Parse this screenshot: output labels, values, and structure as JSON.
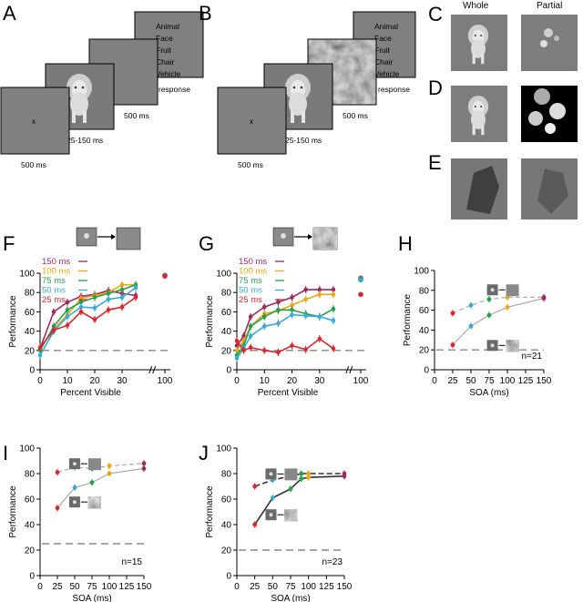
{
  "panel_labels": {
    "A": "A",
    "B": "B",
    "C": "C",
    "D": "D",
    "E": "E",
    "F": "F",
    "G": "G",
    "H": "H",
    "I": "I",
    "J": "J"
  },
  "colors": {
    "150": "#9c2a63",
    "100": "#e7a81b",
    "75": "#2a9d4a",
    "50": "#3aa9d6",
    "25": "#d8282f"
  },
  "protocol": {
    "fixation": "x",
    "choices": [
      "Animal",
      "Face",
      "Fruit",
      "Chair",
      "Vehicle"
    ],
    "response": "response",
    "t_fix": "500 ms",
    "t_stim": "25-150 ms",
    "t_mask": "500 ms"
  },
  "conditions": {
    "whole": "Whole",
    "partial": "Partial"
  },
  "legend_labels": [
    "150 ms",
    "100 ms",
    "75 ms",
    "50 ms",
    "25 ms"
  ],
  "chart_data": [
    {
      "id": "F",
      "type": "line",
      "xlabel": "Percent Visible",
      "ylabel": "Performance",
      "xlim": [
        0,
        40
      ],
      "ylim": [
        0,
        100
      ],
      "xticks": [
        0,
        10,
        20,
        30
      ],
      "extra_tick": "100",
      "yticks": [
        0,
        20,
        40,
        60,
        80,
        100
      ],
      "chance": 20,
      "x": [
        0,
        5,
        10,
        15,
        20,
        25,
        30,
        35
      ],
      "series": [
        {
          "name": "150 ms",
          "values": [
            22,
            60,
            70,
            76,
            78,
            82,
            79,
            77
          ],
          "full": 98
        },
        {
          "name": "100 ms",
          "values": [
            22,
            42,
            57,
            74,
            77,
            80,
            88,
            88
          ],
          "full": 98
        },
        {
          "name": "75 ms",
          "values": [
            20,
            45,
            62,
            70,
            75,
            79,
            83,
            88
          ],
          "full": 98
        },
        {
          "name": "50 ms",
          "values": [
            15,
            40,
            55,
            65,
            64,
            73,
            75,
            85
          ],
          "full": 98
        },
        {
          "name": "25 ms",
          "values": [
            23,
            41,
            46,
            60,
            52,
            62,
            65,
            75
          ],
          "full": 97
        }
      ]
    },
    {
      "id": "G",
      "type": "line",
      "xlabel": "Percent Visible",
      "ylabel": "Performance",
      "xlim": [
        0,
        40
      ],
      "ylim": [
        0,
        100
      ],
      "xticks": [
        0,
        10,
        20,
        30
      ],
      "extra_tick": "100",
      "yticks": [
        0,
        20,
        40,
        60,
        80,
        100
      ],
      "chance": 20,
      "x": [
        0,
        2.5,
        5,
        10,
        15,
        20,
        25,
        30,
        35
      ],
      "series": [
        {
          "name": "150 ms",
          "values": [
            25,
            35,
            55,
            65,
            70,
            75,
            83,
            83,
            83
          ],
          "full": 95
        },
        {
          "name": "100 ms",
          "values": [
            20,
            30,
            45,
            58,
            61,
            67,
            73,
            78,
            78
          ],
          "full": 94
        },
        {
          "name": "75 ms",
          "values": [
            15,
            25,
            45,
            55,
            62,
            62,
            58,
            55,
            63
          ],
          "full": 94
        },
        {
          "name": "50 ms",
          "values": [
            12,
            22,
            35,
            45,
            48,
            57,
            56,
            55,
            51
          ],
          "full": 93
        },
        {
          "name": "25 ms",
          "values": [
            30,
            20,
            23,
            20,
            18,
            25,
            21,
            32,
            22
          ],
          "full": 78
        }
      ]
    },
    {
      "id": "H",
      "type": "line",
      "xlabel": "SOA (ms)",
      "ylabel": "Performance",
      "xlim": [
        0,
        150
      ],
      "ylim": [
        0,
        100
      ],
      "xticks": [
        0,
        25,
        50,
        75,
        100,
        125,
        150
      ],
      "yticks": [
        0,
        20,
        40,
        60,
        80,
        100
      ],
      "chance": 20,
      "n": "n=21",
      "x": [
        25,
        50,
        75,
        100,
        150
      ],
      "series": [
        {
          "name": "Whole, no mask",
          "values": [
            57,
            65,
            71,
            73,
            73
          ]
        },
        {
          "name": "Whole, masked",
          "values": [
            25,
            44,
            55,
            63,
            72
          ]
        }
      ]
    },
    {
      "id": "I",
      "type": "line",
      "xlabel": "SOA (ms)",
      "ylabel": "Performance",
      "xlim": [
        0,
        150
      ],
      "ylim": [
        0,
        100
      ],
      "xticks": [
        0,
        25,
        50,
        75,
        100,
        125,
        150
      ],
      "yticks": [
        0,
        20,
        40,
        60,
        80,
        100
      ],
      "chance": 25,
      "n": "n=15",
      "x": [
        25,
        50,
        75,
        100,
        150
      ],
      "series": [
        {
          "name": "Partial, no mask",
          "values": [
            81,
            85,
            84,
            86,
            88
          ]
        },
        {
          "name": "Partial, masked",
          "values": [
            53,
            69,
            73,
            80,
            84
          ]
        }
      ]
    },
    {
      "id": "J",
      "type": "line",
      "xlabel": "SOA (ms)",
      "ylabel": "Performance",
      "xlim": [
        0,
        150
      ],
      "ylim": [
        0,
        100
      ],
      "xticks": [
        0,
        25,
        50,
        75,
        100,
        125,
        150
      ],
      "yticks": [
        0,
        20,
        40,
        60,
        80,
        100
      ],
      "chance": 20,
      "n": "n=23",
      "x": [
        25,
        50,
        75,
        90,
        100,
        150
      ],
      "series": [
        {
          "name": "No mask",
          "values": [
            70,
            75,
            78,
            80,
            80,
            80
          ]
        },
        {
          "name": "Masked",
          "values": [
            40,
            61,
            68,
            76,
            77,
            78
          ]
        }
      ]
    }
  ]
}
